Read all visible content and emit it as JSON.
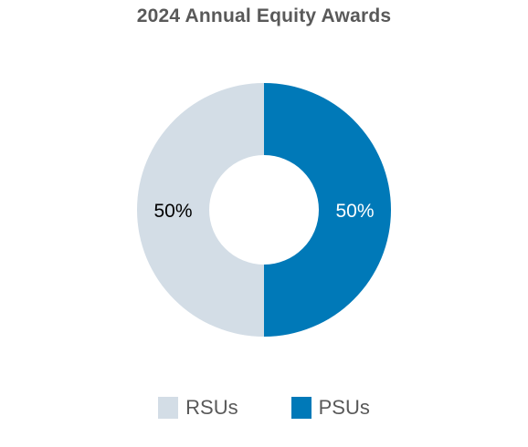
{
  "chart_data": {
    "type": "pie",
    "variant": "donut",
    "title": "2024 Annual Equity Awards",
    "categories": [
      "RSUs",
      "PSUs"
    ],
    "values": [
      50,
      50
    ],
    "labels": [
      "50%",
      "50%"
    ],
    "colors": [
      "#d3dde6",
      "#0079b8"
    ],
    "label_colors": [
      "#000000",
      "#ffffff"
    ],
    "legend": "bottom"
  }
}
